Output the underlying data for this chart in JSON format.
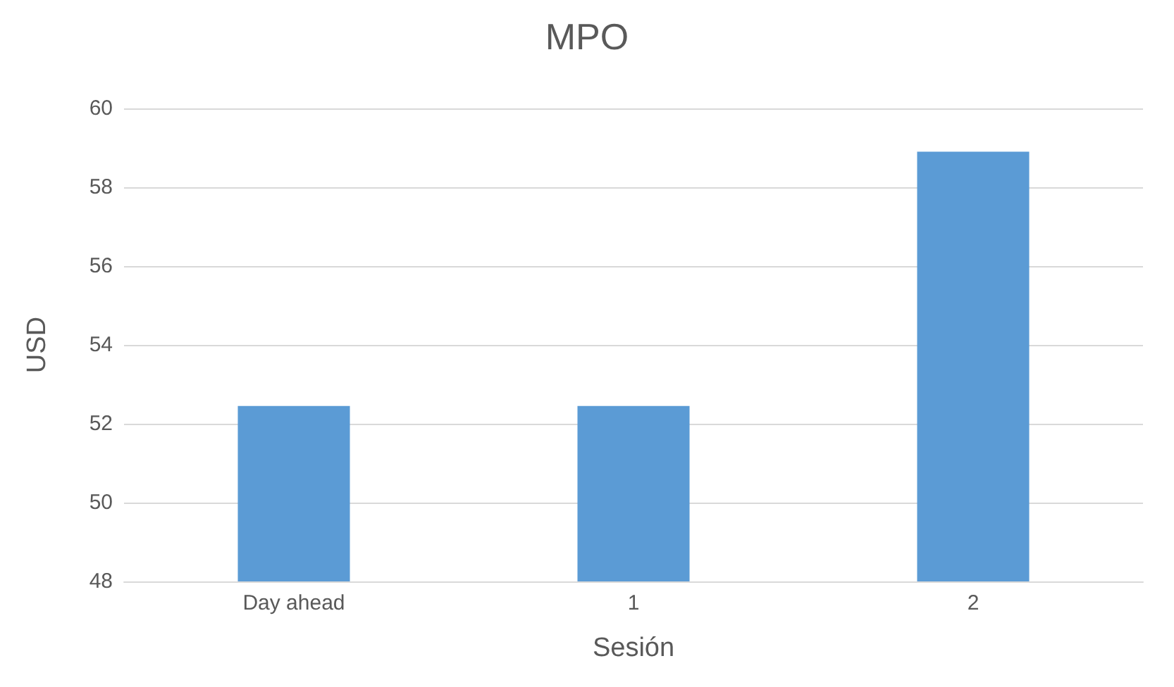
{
  "chart_data": {
    "type": "bar",
    "title": "MPO",
    "xlabel": "Sesión",
    "ylabel": "USD",
    "categories": [
      "Day ahead",
      "1",
      "2"
    ],
    "values": [
      52.45,
      52.45,
      58.9
    ],
    "color": "#5b9bd5",
    "ylim": [
      48,
      60
    ],
    "yticks": [
      48,
      50,
      52,
      54,
      56,
      58,
      60
    ],
    "grid": "y"
  }
}
